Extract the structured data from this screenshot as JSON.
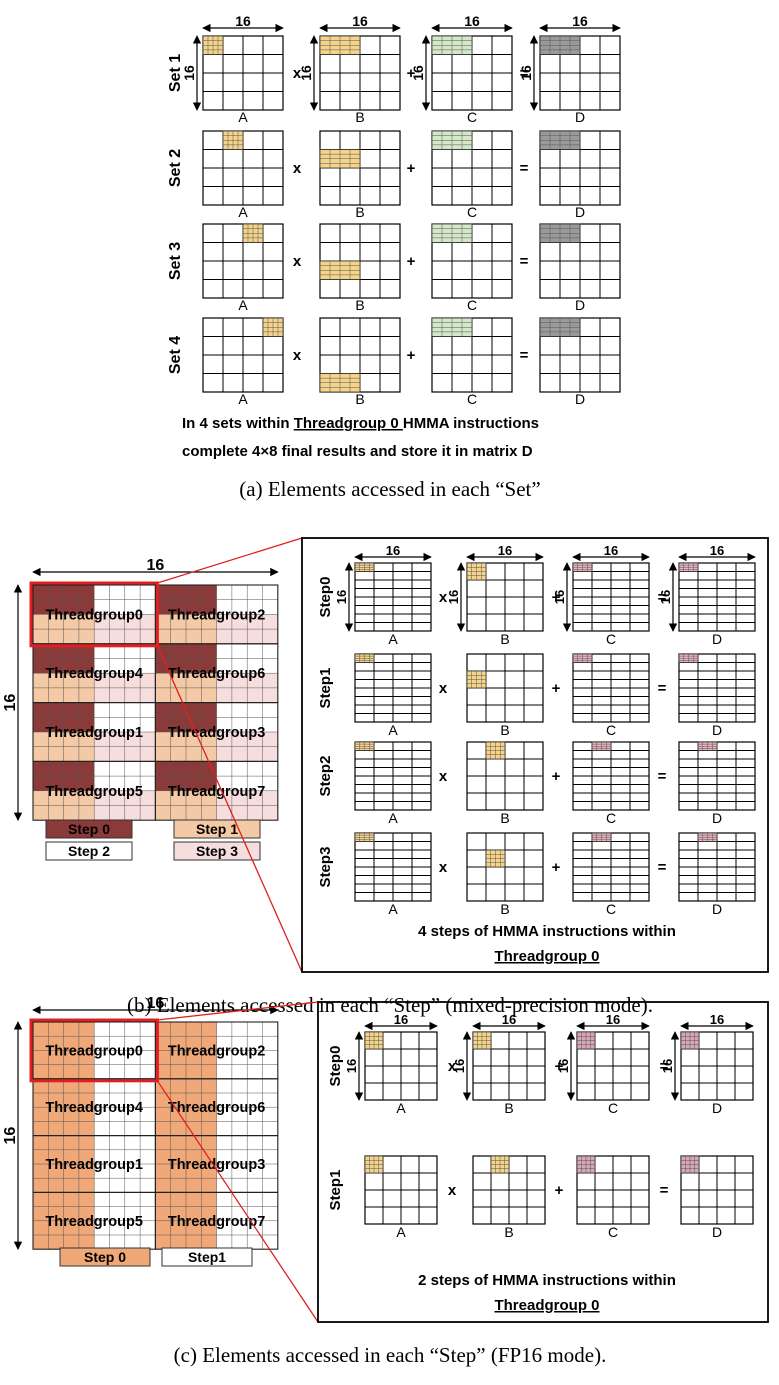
{
  "panel_a": {
    "width_label": "16",
    "height_label": "16",
    "sets": [
      {
        "label": "Set 1",
        "a_block": 0,
        "b_row": 0
      },
      {
        "label": "Set 2",
        "a_block": 1,
        "b_row": 1
      },
      {
        "label": "Set 3",
        "a_block": 2,
        "b_row": 2
      },
      {
        "label": "Set 4",
        "a_block": 3,
        "b_row": 3
      }
    ],
    "matrix_names": [
      "A",
      "B",
      "C",
      "D"
    ],
    "operators": [
      "x",
      "+",
      "="
    ],
    "note_line1_before": "In 4 sets within ",
    "note_line1_emph": "Threadgroup 0 ",
    "note_line1_after": "HMMA instructions",
    "note_line2": "complete 4×8 final results and store it in matrix D",
    "caption": "(a) Elements accessed in each “Set”"
  },
  "panel_b": {
    "grid_width_label": "16",
    "grid_height_label": "16",
    "threadgroups": [
      "Threadgroup0",
      "Threadgroup2",
      "Threadgroup4",
      "Threadgroup6",
      "Threadgroup1",
      "Threadgroup3",
      "Threadgroup5",
      "Threadgroup7"
    ],
    "legend": [
      "Step 0",
      "Step 1",
      "Step 2",
      "Step 3"
    ],
    "colors": {
      "step0": "#8b3a3a",
      "step1": "#f4c9a6",
      "step2": "#ffffff",
      "step3": "#f7dede",
      "highlight": "#e02020",
      "yellow": "#f5d48a",
      "pink": "#e8b4bf",
      "gray": "#9a9a9a",
      "green": "#d4e8c8"
    },
    "steps": [
      {
        "label": "Step0",
        "a_block": 0,
        "b_row": 0,
        "c_block": 0
      },
      {
        "label": "Step1",
        "a_block": 0,
        "b_row": 1,
        "c_block": 0
      },
      {
        "label": "Step2",
        "a_block": 0,
        "b_row": 0,
        "c_block": 1
      },
      {
        "label": "Step3",
        "a_block": 0,
        "b_row": 1,
        "c_block": 1
      }
    ],
    "matrix_names": [
      "A",
      "B",
      "C",
      "D"
    ],
    "operators": [
      "x",
      "+",
      "="
    ],
    "size_label": "16",
    "note_line1": "4 steps of  HMMA instructions within",
    "note_line2": "Threadgroup 0",
    "caption": "(b) Elements accessed in each “Step” (mixed-precision mode)."
  },
  "panel_c": {
    "grid_width_label": "16",
    "grid_height_label": "16",
    "threadgroups": [
      "Threadgroup0",
      "Threadgroup2",
      "Threadgroup4",
      "Threadgroup6",
      "Threadgroup1",
      "Threadgroup3",
      "Threadgroup5",
      "Threadgroup7"
    ],
    "legend": [
      "Step 0",
      "Step1"
    ],
    "colors": {
      "step0": "#f0a878",
      "step1": "#ffffff"
    },
    "steps": [
      {
        "label": "Step0",
        "b_col": 0
      },
      {
        "label": "Step1",
        "b_col": 1
      }
    ],
    "matrix_names": [
      "A",
      "B",
      "C",
      "D"
    ],
    "operators": [
      "x",
      "+",
      "="
    ],
    "size_label": "16",
    "note_line1": "2 steps of HMMA instructions  within",
    "note_line2": "Threadgroup 0",
    "caption": "(c) Elements accessed in each “Step” (FP16 mode)."
  }
}
